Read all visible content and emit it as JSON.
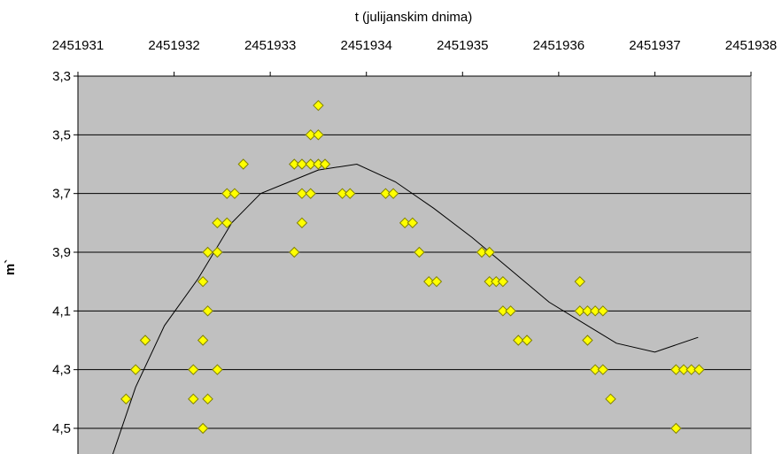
{
  "chart_data": {
    "type": "scatter",
    "title": "",
    "xlabel": "t (julijanskim dnima)",
    "ylabel": "m`",
    "x_axis_position": "top",
    "y_reversed": true,
    "xlim": [
      2451931,
      2451938
    ],
    "ylim": [
      3.3,
      4.6
    ],
    "x_ticks": [
      2451931,
      2451932,
      2451933,
      2451934,
      2451935,
      2451936,
      2451937,
      2451938
    ],
    "x_tick_labels": [
      "2451931",
      "2451932",
      "2451933",
      "2451934",
      "2451935",
      "2451936",
      "2451937",
      "2451938"
    ],
    "y_ticks": [
      3.3,
      3.5,
      3.7,
      3.9,
      4.1,
      4.3,
      4.5
    ],
    "y_tick_labels": [
      "3,3",
      "3,5",
      "3,7",
      "3,9",
      "4,1",
      "4,3",
      "4,5"
    ],
    "grid": "horizontal",
    "plot_background": "#c0c0c0",
    "marker_color": "#ffff00",
    "marker_edge_color": "#808000",
    "series": [
      {
        "kind": "scatter",
        "points": [
          [
            2451931.5,
            4.4
          ],
          [
            2451931.6,
            4.3
          ],
          [
            2451931.7,
            4.2
          ],
          [
            2451932.2,
            4.3
          ],
          [
            2451932.2,
            4.4
          ],
          [
            2451932.3,
            4.0
          ],
          [
            2451932.3,
            4.2
          ],
          [
            2451932.3,
            4.5
          ],
          [
            2451932.35,
            3.9
          ],
          [
            2451932.35,
            4.1
          ],
          [
            2451932.35,
            4.4
          ],
          [
            2451932.45,
            3.8
          ],
          [
            2451932.45,
            3.9
          ],
          [
            2451932.45,
            4.3
          ],
          [
            2451932.55,
            3.7
          ],
          [
            2451932.55,
            3.8
          ],
          [
            2451932.63,
            3.7
          ],
          [
            2451932.72,
            3.6
          ],
          [
            2451933.25,
            3.6
          ],
          [
            2451933.25,
            3.9
          ],
          [
            2451933.33,
            3.6
          ],
          [
            2451933.33,
            3.7
          ],
          [
            2451933.33,
            3.8
          ],
          [
            2451933.42,
            3.5
          ],
          [
            2451933.42,
            3.6
          ],
          [
            2451933.42,
            3.7
          ],
          [
            2451933.5,
            3.4
          ],
          [
            2451933.5,
            3.5
          ],
          [
            2451933.5,
            3.6
          ],
          [
            2451933.57,
            3.6
          ],
          [
            2451933.75,
            3.7
          ],
          [
            2451933.83,
            3.7
          ],
          [
            2451934.2,
            3.7
          ],
          [
            2451934.28,
            3.7
          ],
          [
            2451934.4,
            3.8
          ],
          [
            2451934.48,
            3.8
          ],
          [
            2451934.55,
            3.9
          ],
          [
            2451934.65,
            4.0
          ],
          [
            2451934.73,
            4.0
          ],
          [
            2451935.2,
            3.9
          ],
          [
            2451935.28,
            3.9
          ],
          [
            2451935.28,
            4.0
          ],
          [
            2451935.35,
            4.0
          ],
          [
            2451935.42,
            4.0
          ],
          [
            2451935.42,
            4.1
          ],
          [
            2451935.5,
            4.1
          ],
          [
            2451935.58,
            4.2
          ],
          [
            2451935.67,
            4.2
          ],
          [
            2451936.22,
            4.0
          ],
          [
            2451936.22,
            4.1
          ],
          [
            2451936.3,
            4.1
          ],
          [
            2451936.3,
            4.2
          ],
          [
            2451936.38,
            4.1
          ],
          [
            2451936.38,
            4.3
          ],
          [
            2451936.46,
            4.1
          ],
          [
            2451936.46,
            4.3
          ],
          [
            2451936.54,
            4.4
          ],
          [
            2451937.22,
            4.3
          ],
          [
            2451937.22,
            4.5
          ],
          [
            2451937.3,
            4.3
          ],
          [
            2451937.38,
            4.3
          ],
          [
            2451937.46,
            4.3
          ]
        ]
      },
      {
        "kind": "line",
        "points": [
          [
            2451931.35,
            4.6
          ],
          [
            2451931.6,
            4.36
          ],
          [
            2451931.9,
            4.15
          ],
          [
            2451932.25,
            3.99
          ],
          [
            2451932.6,
            3.8
          ],
          [
            2451932.9,
            3.7
          ],
          [
            2451933.2,
            3.66
          ],
          [
            2451933.5,
            3.62
          ],
          [
            2451933.9,
            3.6
          ],
          [
            2451934.3,
            3.66
          ],
          [
            2451934.7,
            3.75
          ],
          [
            2451935.1,
            3.85
          ],
          [
            2451935.5,
            3.96
          ],
          [
            2451935.9,
            4.07
          ],
          [
            2451936.3,
            4.15
          ],
          [
            2451936.6,
            4.21
          ],
          [
            2451937.0,
            4.24
          ],
          [
            2451937.45,
            4.19
          ]
        ]
      }
    ]
  }
}
